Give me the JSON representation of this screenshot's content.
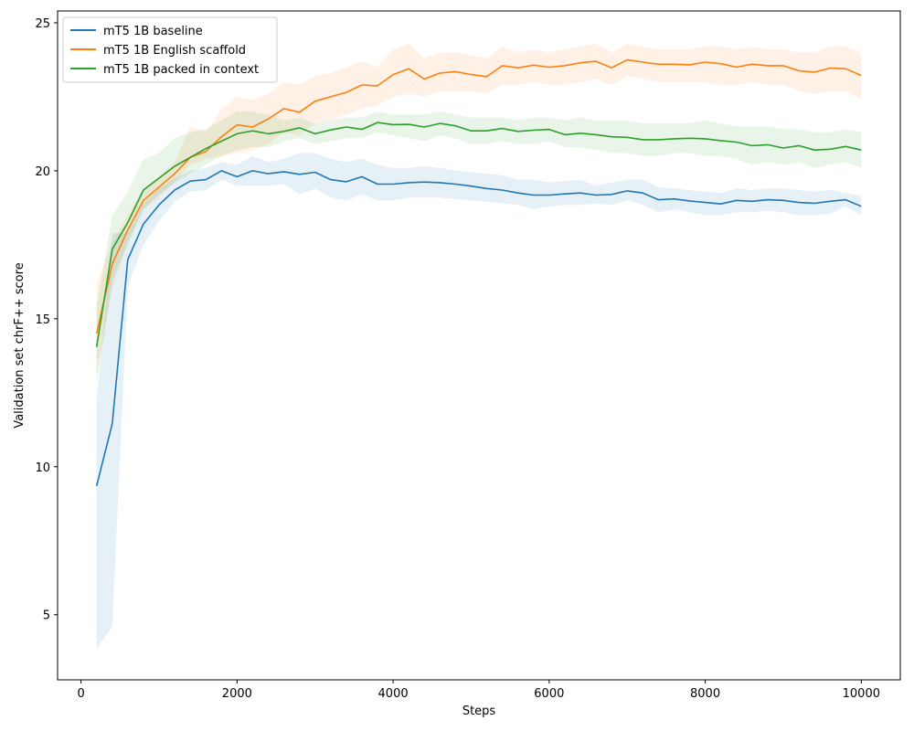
{
  "chart_data": {
    "type": "line",
    "xlabel": "Steps",
    "ylabel": "Validation set chrF++ score",
    "xlim": [
      -300,
      10500
    ],
    "ylim": [
      2.8,
      25.4
    ],
    "xticks": [
      0,
      2000,
      4000,
      6000,
      8000,
      10000
    ],
    "yticks": [
      5,
      10,
      15,
      20,
      25
    ],
    "grid": false,
    "legend_position": "top-left",
    "x": [
      200,
      400,
      600,
      800,
      1000,
      1200,
      1400,
      1600,
      1800,
      2000,
      2200,
      2400,
      2600,
      2800,
      3000,
      3200,
      3400,
      3600,
      3800,
      4000,
      4200,
      4400,
      4600,
      4800,
      5000,
      5200,
      5400,
      5600,
      5800,
      6000,
      6200,
      6400,
      6600,
      6800,
      7000,
      7200,
      7400,
      7600,
      7800,
      8000,
      8200,
      8400,
      8600,
      8800,
      9000,
      9200,
      9400,
      9600,
      9800,
      10000
    ],
    "series": [
      {
        "name": "mT5 1B baseline",
        "color": "#1f77b4",
        "values": [
          9.35,
          11.45,
          17.0,
          18.2,
          18.85,
          19.35,
          19.65,
          19.7,
          20.0,
          19.8,
          20.0,
          19.9,
          19.97,
          19.88,
          19.95,
          19.7,
          19.63,
          19.8,
          19.55,
          19.55,
          19.6,
          19.62,
          19.6,
          19.55,
          19.48,
          19.4,
          19.35,
          19.25,
          19.18,
          19.18,
          19.22,
          19.25,
          19.18,
          19.2,
          19.32,
          19.25,
          19.02,
          19.05,
          18.98,
          18.93,
          18.88,
          19.0,
          18.97,
          19.02,
          19.0,
          18.93,
          18.9,
          18.97,
          19.02,
          18.8
        ],
        "lower": [
          3.85,
          4.6,
          16.1,
          17.5,
          18.3,
          18.95,
          19.3,
          19.35,
          19.7,
          19.5,
          19.5,
          19.5,
          19.55,
          19.2,
          19.4,
          19.1,
          19.0,
          19.2,
          19.0,
          19.0,
          19.1,
          19.1,
          19.1,
          19.05,
          19.0,
          18.95,
          18.9,
          18.85,
          18.7,
          18.8,
          18.85,
          18.85,
          18.9,
          18.85,
          19.0,
          18.85,
          18.6,
          18.7,
          18.6,
          18.5,
          18.5,
          18.6,
          18.6,
          18.65,
          18.6,
          18.5,
          18.5,
          18.55,
          18.8,
          18.5
        ],
        "upper": [
          12.2,
          17.9,
          17.9,
          18.9,
          19.4,
          19.75,
          20.0,
          20.1,
          20.3,
          20.2,
          20.5,
          20.3,
          20.4,
          20.6,
          20.6,
          20.4,
          20.3,
          20.4,
          20.2,
          20.1,
          20.1,
          20.15,
          20.1,
          20.0,
          19.95,
          19.9,
          19.85,
          19.7,
          19.7,
          19.6,
          19.65,
          19.7,
          19.5,
          19.6,
          19.7,
          19.7,
          19.45,
          19.4,
          19.35,
          19.3,
          19.25,
          19.4,
          19.35,
          19.4,
          19.4,
          19.35,
          19.3,
          19.35,
          19.25,
          19.15
        ]
      },
      {
        "name": "mT5 1B English scaffold",
        "color": "#ff7f0e",
        "values": [
          14.5,
          16.85,
          18.0,
          19.0,
          19.45,
          19.9,
          20.45,
          20.65,
          21.15,
          21.55,
          21.48,
          21.75,
          22.1,
          21.98,
          22.35,
          22.5,
          22.65,
          22.9,
          22.87,
          23.25,
          23.45,
          23.1,
          23.3,
          23.35,
          23.25,
          23.18,
          23.55,
          23.48,
          23.57,
          23.5,
          23.55,
          23.65,
          23.7,
          23.48,
          23.75,
          23.67,
          23.6,
          23.6,
          23.58,
          23.67,
          23.62,
          23.5,
          23.6,
          23.55,
          23.55,
          23.38,
          23.33,
          23.47,
          23.45,
          23.22
        ],
        "lower": [
          13.2,
          16.0,
          17.6,
          18.7,
          19.1,
          19.6,
          20.2,
          20.4,
          20.5,
          20.6,
          20.7,
          20.9,
          21.3,
          21.2,
          21.6,
          21.7,
          21.9,
          22.1,
          22.2,
          22.5,
          22.6,
          22.5,
          22.7,
          22.7,
          22.7,
          22.6,
          22.9,
          22.9,
          23.0,
          22.9,
          22.9,
          23.0,
          23.1,
          22.9,
          23.2,
          23.1,
          23.0,
          23.0,
          23.0,
          23.0,
          22.9,
          22.9,
          23.0,
          22.9,
          22.9,
          22.7,
          22.6,
          22.7,
          22.7,
          22.4
        ],
        "upper": [
          16.2,
          17.6,
          18.5,
          19.4,
          19.8,
          20.3,
          21.5,
          21.3,
          22.1,
          22.5,
          22.4,
          22.6,
          23.0,
          22.9,
          23.2,
          23.3,
          23.5,
          23.7,
          23.5,
          24.1,
          24.3,
          23.8,
          24.0,
          24.0,
          23.9,
          23.8,
          24.2,
          24.0,
          24.1,
          24.0,
          24.1,
          24.2,
          24.3,
          24.0,
          24.3,
          24.2,
          24.1,
          24.1,
          24.1,
          24.2,
          24.2,
          24.1,
          24.2,
          24.1,
          24.1,
          24.0,
          24.0,
          24.2,
          24.2,
          24.0
        ]
      },
      {
        "name": "mT5 1B packed in context",
        "color": "#2ca02c",
        "values": [
          14.05,
          17.35,
          18.25,
          19.35,
          19.75,
          20.15,
          20.45,
          20.75,
          21.0,
          21.25,
          21.35,
          21.25,
          21.33,
          21.45,
          21.25,
          21.38,
          21.48,
          21.4,
          21.63,
          21.56,
          21.57,
          21.48,
          21.6,
          21.52,
          21.35,
          21.35,
          21.43,
          21.33,
          21.37,
          21.4,
          21.22,
          21.27,
          21.22,
          21.15,
          21.13,
          21.05,
          21.05,
          21.08,
          21.1,
          21.08,
          21.02,
          20.97,
          20.85,
          20.88,
          20.77,
          20.85,
          20.7,
          20.73,
          20.82,
          20.7
        ],
        "lower": [
          12.8,
          16.3,
          17.5,
          18.7,
          19.2,
          19.6,
          19.9,
          20.2,
          20.5,
          20.7,
          20.8,
          20.8,
          21.0,
          21.1,
          20.9,
          21.0,
          21.1,
          21.1,
          21.3,
          21.2,
          21.1,
          21.0,
          21.2,
          21.1,
          20.9,
          20.9,
          21.0,
          20.9,
          20.9,
          21.0,
          20.8,
          20.8,
          20.7,
          20.6,
          20.6,
          20.5,
          20.5,
          20.6,
          20.6,
          20.5,
          20.5,
          20.4,
          20.2,
          20.3,
          20.2,
          20.3,
          20.1,
          20.2,
          20.3,
          20.1
        ],
        "upper": [
          15.4,
          18.5,
          19.3,
          20.4,
          20.6,
          21.1,
          21.3,
          21.4,
          21.7,
          22.0,
          22.0,
          21.9,
          21.7,
          21.8,
          21.6,
          21.7,
          21.8,
          21.8,
          22.0,
          21.9,
          21.9,
          21.9,
          22.0,
          21.9,
          21.8,
          21.8,
          21.8,
          21.7,
          21.8,
          21.8,
          21.7,
          21.8,
          21.7,
          21.7,
          21.7,
          21.6,
          21.6,
          21.6,
          21.6,
          21.7,
          21.6,
          21.5,
          21.5,
          21.5,
          21.4,
          21.4,
          21.3,
          21.3,
          21.4,
          21.3
        ]
      }
    ]
  }
}
